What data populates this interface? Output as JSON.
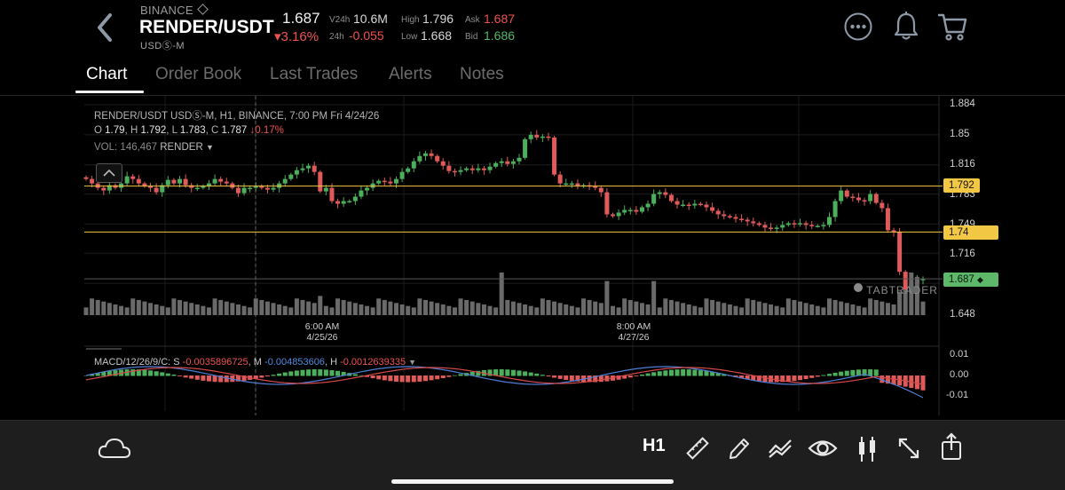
{
  "header": {
    "exchange": "BINANCE",
    "pair": "RENDER/USDT",
    "pair_type": "USDⓈ-M",
    "last_price": "1.687",
    "change_pct": "▾3.16%",
    "v24h_label": "V24h",
    "v24h_value": "10.6M",
    "c24h_label": "24h",
    "c24h_value": "-0.055",
    "high_label": "High",
    "high_value": "1.796",
    "low_label": "Low",
    "low_value": "1.668",
    "ask_label": "Ask",
    "ask_value": "1.687",
    "bid_label": "Bid",
    "bid_value": "1.686",
    "icons": [
      "back-chevron-icon",
      "more-icon",
      "bell-icon",
      "cart-icon"
    ]
  },
  "tabs": [
    {
      "label": "Chart",
      "active": true
    },
    {
      "label": "Order Book",
      "active": false
    },
    {
      "label": "Last Trades",
      "active": false
    },
    {
      "label": "Alerts",
      "active": false
    },
    {
      "label": "Notes",
      "active": false
    }
  ],
  "overlay": {
    "title": "RENDER/USDT USDⓈ-M, H1, BINANCE, 7:00 PM Fri 4/24/26",
    "o_label": "O",
    "o_value": "1.79",
    "h_label": "H",
    "h_value": "1.792",
    "l_label": "L",
    "l_value": "1.783",
    "c_label": "C",
    "c_value": "1.787",
    "c_change": "↓0.17%",
    "vol_label": "VOL:",
    "vol_value": "146,467",
    "vol_unit": "RENDER",
    "macd_label": "MACD/12/26/9/C: S",
    "macd_s": "-0.0035896725",
    "macd_m_label": "M",
    "macd_m": "-0.004853606",
    "macd_h_label": "H",
    "macd_h": "-0.0012639335",
    "watermark": "TABTRADER"
  },
  "colors": {
    "up": "#4caf5c",
    "down": "#e15a5a",
    "alert_line": "#f2c744",
    "price_badge": "#5db86a",
    "macd_blue": "#4f7dd4",
    "macd_red": "#d64a4a"
  },
  "chart_data": {
    "type": "candlestick",
    "title": "RENDER/USDT USDⓈ-M, H1, BINANCE",
    "y_ticks": [
      "1.884",
      "1.85",
      "1.816",
      "1.783",
      "1.749",
      "1.716",
      "1.648"
    ],
    "ylim": [
      1.648,
      1.884
    ],
    "price_levels": [
      {
        "label": "1.792",
        "value": 1.792,
        "color": "#f2c744"
      },
      {
        "label": "1.74",
        "value": 1.74,
        "color": "#f2c744"
      },
      {
        "label": "1.687",
        "value": 1.687,
        "color": "#5db86a"
      }
    ],
    "x_labels": [
      {
        "time": "6:00 AM",
        "date": "4/25/26"
      },
      {
        "time": "8:00 AM",
        "date": "4/27/26"
      }
    ],
    "closes": [
      1.8,
      1.795,
      1.79,
      1.787,
      1.793,
      1.79,
      1.795,
      1.803,
      1.8,
      1.795,
      1.792,
      1.79,
      1.785,
      1.793,
      1.799,
      1.795,
      1.8,
      1.793,
      1.79,
      1.79,
      1.792,
      1.795,
      1.8,
      1.797,
      1.795,
      1.79,
      1.784,
      1.79,
      1.79,
      1.792,
      1.79,
      1.788,
      1.79,
      1.795,
      1.8,
      1.805,
      1.81,
      1.812,
      1.815,
      1.808,
      1.786,
      1.79,
      1.775,
      1.772,
      1.775,
      1.775,
      1.78,
      1.787,
      1.79,
      1.795,
      1.798,
      1.797,
      1.795,
      1.8,
      1.808,
      1.812,
      1.82,
      1.826,
      1.829,
      1.826,
      1.82,
      1.815,
      1.809,
      1.808,
      1.81,
      1.812,
      1.81,
      1.812,
      1.81,
      1.814,
      1.818,
      1.82,
      1.817,
      1.82,
      1.824,
      1.845,
      1.85,
      1.847,
      1.848,
      1.847,
      1.805,
      1.795,
      1.795,
      1.795,
      1.792,
      1.793,
      1.792,
      1.79,
      1.785,
      1.76,
      1.758,
      1.762,
      1.765,
      1.765,
      1.763,
      1.768,
      1.772,
      1.783,
      1.785,
      1.782,
      1.775,
      1.771,
      1.771,
      1.77,
      1.772,
      1.771,
      1.768,
      1.764,
      1.76,
      1.758,
      1.757,
      1.755,
      1.754,
      1.752,
      1.75,
      1.748,
      1.745,
      1.744,
      1.745,
      1.748,
      1.75,
      1.749,
      1.75,
      1.748,
      1.747,
      1.747,
      1.748,
      1.757,
      1.775,
      1.787,
      1.78,
      1.779,
      1.776,
      1.775,
      1.783,
      1.773,
      1.767,
      1.742,
      1.74,
      1.695,
      1.672,
      1.681,
      1.686,
      1.687
    ],
    "volume_note": "relative bar heights",
    "macd": {
      "labels": [
        "0.01",
        "0.00",
        "-0.01"
      ],
      "ylim": [
        -0.012,
        0.012
      ]
    }
  },
  "toolbar": {
    "timeframe": "H1",
    "icons": [
      "cloud-icon",
      "ruler-icon",
      "pencil-icon",
      "indicators-icon",
      "eye-icon",
      "candles-icon",
      "fullscreen-icon",
      "share-icon"
    ]
  }
}
